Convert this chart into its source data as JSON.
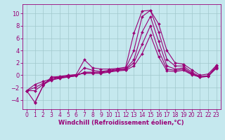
{
  "xlabel": "Windchill (Refroidissement éolien,°C)",
  "ylabel": "",
  "xlim": [
    -0.5,
    23.5
  ],
  "ylim": [
    -5.5,
    11.5
  ],
  "yticks": [
    -4,
    -2,
    0,
    2,
    4,
    6,
    8,
    10
  ],
  "xticks": [
    0,
    1,
    2,
    3,
    4,
    5,
    6,
    7,
    8,
    9,
    10,
    11,
    12,
    13,
    14,
    15,
    16,
    17,
    18,
    19,
    20,
    21,
    22,
    23
  ],
  "bg_color": "#c5e8ee",
  "line_color": "#990077",
  "grid_color": "#a0c8cc",
  "lines": [
    [
      null,
      -4.5,
      -1.7,
      -0.3,
      -0.2,
      0.0,
      0.1,
      2.5,
      1.2,
      1.0,
      1.0,
      1.1,
      1.3,
      6.8,
      10.4,
      10.5,
      8.3,
      4.0,
      2.0,
      1.8,
      0.9,
      0.0,
      0.2,
      1.6
    ],
    [
      -2.5,
      -4.4,
      -1.7,
      -0.3,
      -0.4,
      -0.3,
      -0.1,
      1.2,
      0.8,
      0.6,
      0.8,
      1.0,
      1.1,
      4.0,
      9.5,
      10.5,
      7.0,
      2.6,
      1.5,
      1.5,
      0.5,
      -0.2,
      -0.1,
      1.5
    ],
    [
      -2.5,
      -2.5,
      -1.5,
      -0.8,
      -0.5,
      -0.3,
      -0.1,
      0.5,
      0.5,
      0.5,
      0.7,
      0.9,
      1.0,
      2.5,
      7.0,
      9.5,
      5.5,
      1.5,
      1.0,
      1.2,
      0.3,
      -0.3,
      -0.2,
      1.3
    ],
    [
      -2.5,
      -2.0,
      -1.3,
      -0.7,
      -0.4,
      -0.2,
      0.0,
      0.4,
      0.4,
      0.4,
      0.6,
      0.8,
      0.9,
      2.0,
      5.0,
      8.0,
      4.0,
      1.0,
      0.8,
      1.0,
      0.2,
      -0.3,
      -0.2,
      1.2
    ],
    [
      -2.5,
      -1.5,
      -1.0,
      -0.6,
      -0.3,
      -0.1,
      0.1,
      0.3,
      0.3,
      0.3,
      0.5,
      0.7,
      0.8,
      1.5,
      3.5,
      6.5,
      3.0,
      0.7,
      0.6,
      0.8,
      0.1,
      -0.3,
      -0.1,
      1.1
    ]
  ],
  "marker": "D",
  "markersize": 2.0,
  "linewidth": 0.8,
  "tick_fontsize": 5.5,
  "xlabel_fontsize": 6.0
}
